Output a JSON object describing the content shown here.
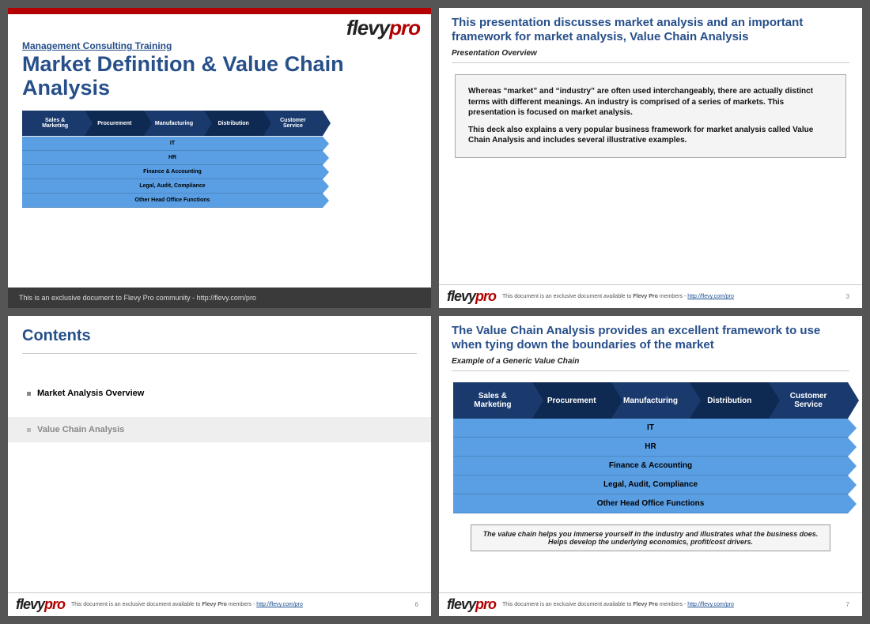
{
  "colors": {
    "red": "#b30000",
    "navy": "#1a3a6e",
    "navy_darker": "#0f2a52",
    "title_navy": "#274f8a",
    "blue": "#5a9fe4",
    "blue_border": "#2d6db3",
    "footer_dark": "#3a3a3a",
    "hr": "#cccccc"
  },
  "logo": {
    "left": "flevy",
    "right": "pro"
  },
  "slide1": {
    "eyebrow": "Management Consulting Training",
    "title": "Market Definition & Value Chain Analysis",
    "footer": "This is an exclusive document to Flevy Pro community - http://flevy.com/pro"
  },
  "value_chain": {
    "primary": [
      "Sales & Marketing",
      "Procurement",
      "Manufacturing",
      "Distribution",
      "Customer Service"
    ],
    "support": [
      "IT",
      "HR",
      "Finance & Accounting",
      "Legal, Audit, Compliance",
      "Other Head Office Functions"
    ]
  },
  "slide2": {
    "title": "This presentation discusses market analysis and an important framework for market analysis, Value Chain Analysis",
    "subtitle": "Presentation Overview",
    "p1": "Whereas “market” and “industry” are often used interchangeably, there are actually distinct terms with different meanings.  An industry is comprised of a series of markets.  This presentation is focused on market analysis.",
    "p2": "This deck also explains a very popular business framework for market analysis called Value Chain Analysis and includes several illustrative examples.",
    "page": "3"
  },
  "slide3": {
    "title": "Contents",
    "item1": "Market Analysis Overview",
    "item2": "Value Chain Analysis",
    "page": "6"
  },
  "slide4": {
    "title": "The Value Chain Analysis provides an excellent framework to use when tying down the boundaries of the market",
    "subtitle": "Example of a Generic Value Chain",
    "note": "The value chain helps you immerse yourself in the industry and illustrates what the business does. Helps develop the underlying economics, profit/cost drivers.",
    "page": "7"
  },
  "footer_shared": {
    "text_pre": "This document is an exclusive document available to ",
    "bold": "Flevy Pro",
    "text_mid": " members - ",
    "link": "http://flevy.com/pro"
  }
}
